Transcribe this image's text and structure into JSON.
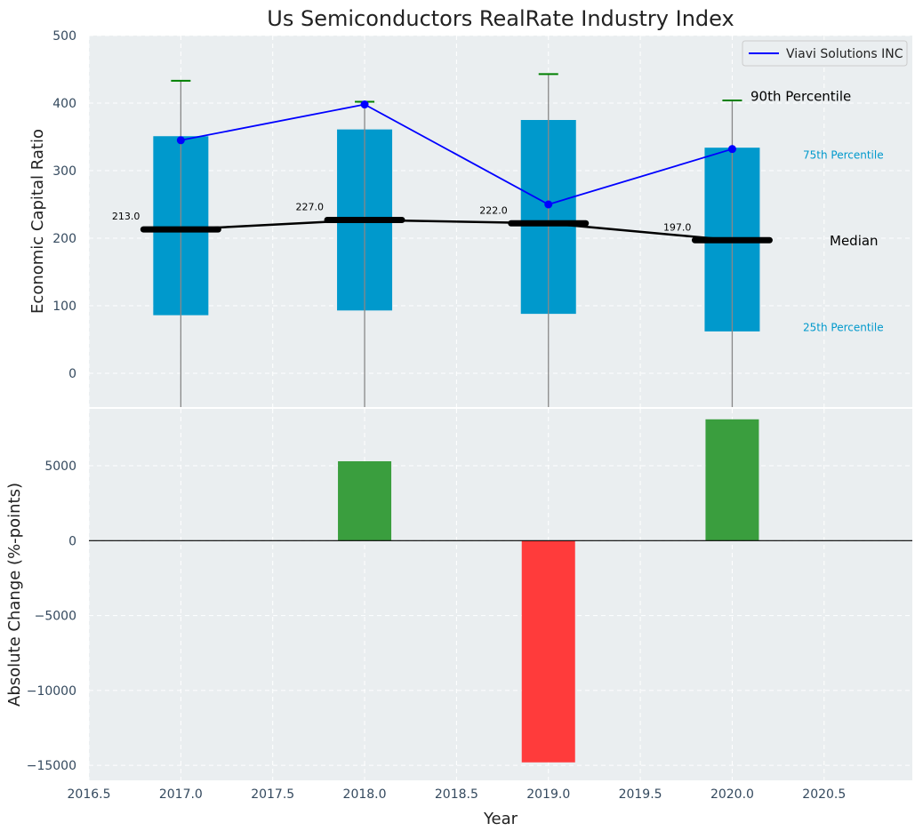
{
  "chart_data": [
    {
      "type": "bar",
      "title": "Us Semiconductors RealRate Industry Index",
      "ylabel": "Economic Capital Ratio",
      "xlabel": "",
      "ylim": [
        -50,
        500
      ],
      "yticks": [
        0,
        100,
        200,
        300,
        400,
        500
      ],
      "x": [
        2017,
        2018,
        2019,
        2020
      ],
      "grid": true,
      "legend_placement": "top-right",
      "boxes": [
        {
          "year": 2017,
          "p25": 86,
          "p75": 351,
          "p90": 433,
          "median": 213
        },
        {
          "year": 2018,
          "p25": 93,
          "p75": 361,
          "p90": 402,
          "median": 227
        },
        {
          "year": 2019,
          "p25": 88,
          "p75": 375,
          "p90": 443,
          "median": 222
        },
        {
          "year": 2020,
          "p25": 62,
          "p75": 334,
          "p90": 404,
          "median": 197
        }
      ],
      "median_labels": [
        "213.0",
        "227.0",
        "222.0",
        "197.0"
      ],
      "series": [
        {
          "name": "Viavi Solutions INC",
          "values": [
            345,
            398,
            250,
            332
          ],
          "color": "#0000ff"
        }
      ],
      "annotations": {
        "p90": "90th Percentile",
        "p75": "75th Percentile",
        "median": "Median",
        "p25": "25th Percentile"
      },
      "colors": {
        "box": "#0099cc",
        "median": "#000000",
        "whisker": "#888888",
        "p90_cap": "#008000",
        "background": "#eaeef0"
      }
    },
    {
      "type": "bar",
      "ylabel": "Absolute Change (%-points)",
      "xlabel": "Year",
      "ylim": [
        -16000,
        8800
      ],
      "yticks": [
        -15000,
        -10000,
        -5000,
        0,
        5000
      ],
      "ytick_labels": [
        "−15000",
        "−10000",
        "−5000",
        "0",
        "5000"
      ],
      "xlim": [
        2016.5,
        2020.98
      ],
      "xticks": [
        "2016.5",
        "2017.0",
        "2017.5",
        "2018.0",
        "2018.5",
        "2019.0",
        "2019.5",
        "2020.0",
        "2020.5"
      ],
      "x": [
        2018,
        2019,
        2020
      ],
      "values": [
        5300,
        -14800,
        8100
      ],
      "grid": true,
      "colors": {
        "positive": "#3a9e3e",
        "negative": "#ff3b3b",
        "zero_line": "#000000"
      }
    }
  ]
}
